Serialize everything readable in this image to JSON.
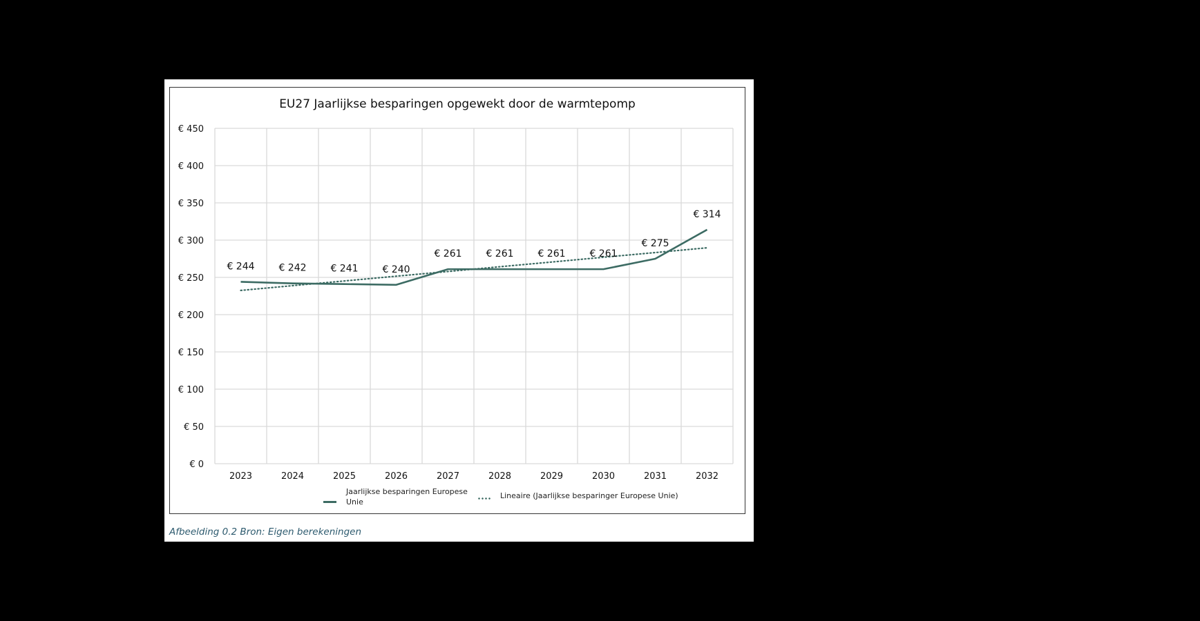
{
  "page": {
    "caption": "Afbeelding 0.2 Bron: Eigen berekeningen"
  },
  "chart_data": {
    "type": "line",
    "title": "EU27 Jaarlijkse besparingen opgewekt door de warmtepomp",
    "xlabel": "",
    "ylabel": "",
    "categories": [
      "2023",
      "2024",
      "2025",
      "2026",
      "2027",
      "2028",
      "2029",
      "2030",
      "2031",
      "2032"
    ],
    "series": [
      {
        "name": "Jaarlijkse besparingen Europese Unie",
        "style": "solid",
        "color": "#3c6b63",
        "values": [
          244,
          242,
          241,
          240,
          261,
          261,
          261,
          261,
          275,
          314
        ],
        "data_labels": [
          "€ 244",
          "€ 242",
          "€ 241",
          "€ 240",
          "€ 261",
          "€ 261",
          "€ 261",
          "€ 261",
          "€ 275",
          "€ 314"
        ]
      },
      {
        "name": "Lineaire (Jaarlijkse besparinger Europese Unie)",
        "style": "dotted",
        "color": "#3c6b63",
        "trendline_of": "Jaarlijkse besparingen Europese Unie",
        "values": [
          232.5,
          238.9,
          245.2,
          251.6,
          257.9,
          264.3,
          270.6,
          277.0,
          283.3,
          289.7
        ]
      }
    ],
    "ylim": [
      0,
      450
    ],
    "yticks": [
      0,
      50,
      100,
      150,
      200,
      250,
      300,
      350,
      400,
      450
    ],
    "ytick_labels": [
      "€ 0",
      "€ 50",
      "€ 100",
      "€ 150",
      "€ 200",
      "€ 250",
      "€ 300",
      "€ 350",
      "€ 400",
      "€ 450"
    ],
    "grid": true,
    "legend_position": "bottom",
    "legend": [
      {
        "label_line1": "Jaarlijkse besparingen Europese",
        "label_line2": "Unie",
        "marker": "solid"
      },
      {
        "label_line1": "Lineaire (Jaarlijkse besparinger Europese Unie)",
        "marker": "dotted"
      }
    ]
  }
}
